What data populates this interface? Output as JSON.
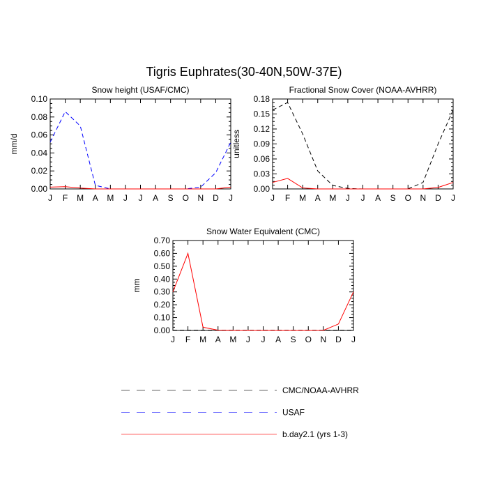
{
  "figure_title": "Tigris Euphrates(30-40N,50W-37E)",
  "legend": [
    {
      "label": "CMC/NOAA-AVHRR",
      "color": "#000000",
      "dash": "dashed"
    },
    {
      "label": "USAF",
      "color": "#0000ff",
      "dash": "dashed"
    },
    {
      "label": "b.day2.1 (yrs 1-3)",
      "color": "#ff0000",
      "dash": "solid"
    }
  ],
  "chart_data": [
    {
      "type": "line",
      "title": "Snow height (USAF/CMC)",
      "xlabel": "",
      "ylabel": "mm/d",
      "categories": [
        "J",
        "F",
        "M",
        "A",
        "M",
        "J",
        "J",
        "A",
        "S",
        "O",
        "N",
        "D",
        "J"
      ],
      "ylim": [
        0,
        0.1
      ],
      "yticks": [
        "0.00",
        "0.02",
        "0.04",
        "0.06",
        "0.08",
        "0.10"
      ],
      "series": [
        {
          "name": "USAF",
          "color": "#0000ff",
          "dash": "dashed",
          "values": [
            0.052,
            0.086,
            0.07,
            0.004,
            0.0,
            0.0,
            0.0,
            0.0,
            0.0,
            0.0,
            0.002,
            0.018,
            0.052
          ]
        },
        {
          "name": "b.day2.1 (yrs 1-3)",
          "color": "#ff0000",
          "dash": "solid",
          "values": [
            0.002,
            0.0025,
            0.001,
            0.0,
            0.0,
            0.0,
            0.0,
            0.0,
            0.0,
            0.0,
            0.0,
            0.0,
            0.002
          ]
        }
      ]
    },
    {
      "type": "line",
      "title": "Fractional Snow Cover (NOAA-AVHRR)",
      "xlabel": "",
      "ylabel": "unitless",
      "categories": [
        "J",
        "F",
        "M",
        "A",
        "M",
        "J",
        "J",
        "A",
        "S",
        "O",
        "N",
        "D",
        "J"
      ],
      "ylim": [
        0,
        0.18
      ],
      "yticks": [
        "0.00",
        "0.03",
        "0.06",
        "0.09",
        "0.12",
        "0.15",
        "0.18"
      ],
      "series": [
        {
          "name": "CMC/NOAA-AVHRR",
          "color": "#000000",
          "dash": "dashed",
          "values": [
            0.158,
            0.173,
            0.11,
            0.036,
            0.007,
            0.001,
            0.0,
            0.0,
            0.0,
            0.0,
            0.013,
            0.09,
            0.158
          ]
        },
        {
          "name": "b.day2.1 (yrs 1-3)",
          "color": "#ff0000",
          "dash": "solid",
          "values": [
            0.013,
            0.021,
            0.002,
            0.0,
            0.0,
            0.0,
            0.0,
            0.0,
            0.0,
            0.0,
            0.0,
            0.003,
            0.013
          ]
        }
      ]
    },
    {
      "type": "line",
      "title": "Snow Water Equivalent (CMC)",
      "xlabel": "",
      "ylabel": "mm",
      "categories": [
        "J",
        "F",
        "M",
        "A",
        "M",
        "J",
        "J",
        "A",
        "S",
        "O",
        "N",
        "D",
        "J"
      ],
      "ylim": [
        0,
        0.7
      ],
      "yticks": [
        "0.00",
        "0.10",
        "0.20",
        "0.30",
        "0.40",
        "0.50",
        "0.60",
        "0.70"
      ],
      "series": [
        {
          "name": "CMC/NOAA-AVHRR",
          "color": "#000000",
          "dash": "dashed",
          "values": [
            0.002,
            0.002,
            0.002,
            0.002,
            0.002,
            0.002,
            0.002,
            0.002,
            0.002,
            0.002,
            0.002,
            0.002,
            0.002
          ]
        },
        {
          "name": "b.day2.1 (yrs 1-3)",
          "color": "#ff0000",
          "dash": "solid",
          "values": [
            0.3,
            0.6,
            0.025,
            0.002,
            0.0,
            0.0,
            0.0,
            0.0,
            0.0,
            0.0,
            0.001,
            0.05,
            0.3
          ]
        }
      ]
    }
  ]
}
